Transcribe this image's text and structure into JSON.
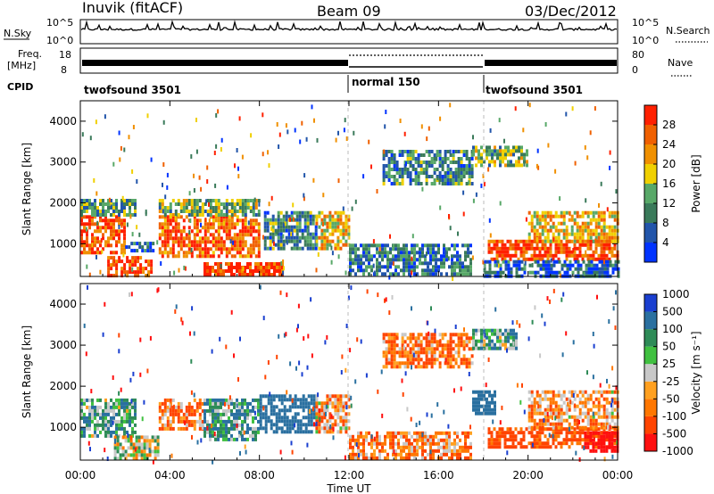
{
  "header": {
    "station": "Inuvik (fitACF)",
    "beam": "Beam 09",
    "date": "03/Dec/2012"
  },
  "top_strip": {
    "left_label": "N.Sky",
    "right_label": "N.Search",
    "left_ticks": [
      "10^5",
      "10^0"
    ],
    "right_ticks": [
      "10^5",
      "10^0"
    ]
  },
  "freq_strip": {
    "left_label": "Freq.",
    "left_unit": "[MHz]",
    "left_ticks": [
      "18",
      "8"
    ],
    "right_label": "Nave",
    "right_ticks": [
      "80",
      "0"
    ]
  },
  "cpid": {
    "label": "CPID",
    "segments": [
      {
        "name": "twofsound 3501",
        "start_hour": 0,
        "end_hour": 12
      },
      {
        "name": "normal 150",
        "start_hour": 12,
        "end_hour": 18
      },
      {
        "name": "twofsound 3501",
        "start_hour": 18,
        "end_hour": 24
      }
    ]
  },
  "x_axis": {
    "title": "Time UT",
    "ticks": [
      "00:00",
      "04:00",
      "08:00",
      "12:00",
      "16:00",
      "20:00",
      "00:00"
    ]
  },
  "colors": {
    "power": [
      "#0033ff",
      "#2255aa",
      "#3a7a5a",
      "#58a868",
      "#f0d000",
      "#f09000",
      "#f06000",
      "#ff2000"
    ],
    "velocity": [
      "#ff1010",
      "#ff4400",
      "#ff7700",
      "#ffa020",
      "#c8c8c8",
      "#40c040",
      "#2e8b57",
      "#2a70a0",
      "#1a3fd0"
    ]
  },
  "chart_data": [
    {
      "type": "heatmap",
      "name": "power",
      "ylabel": "Slant Range [km]",
      "y_ticks": [
        "1000",
        "2000",
        "3000",
        "4000"
      ],
      "ylim": [
        200,
        4500
      ],
      "colorbar_label": "Power [dB]",
      "colorbar_ticks": [
        "4",
        "8",
        "12",
        "16",
        "20",
        "24",
        "28"
      ],
      "clim": [
        0,
        32
      ],
      "bands": [
        {
          "t0": 0.0,
          "t1": 2.0,
          "r0": 800,
          "r1": 1700,
          "value": 27
        },
        {
          "t0": 0.0,
          "t1": 2.4,
          "r0": 1700,
          "r1": 2100,
          "value": 12
        },
        {
          "t0": 1.2,
          "t1": 3.2,
          "r0": 250,
          "r1": 700,
          "value": 28
        },
        {
          "t0": 2.0,
          "t1": 3.2,
          "r0": 850,
          "r1": 1050,
          "value": 6
        },
        {
          "t0": 3.5,
          "t1": 8.0,
          "r0": 700,
          "r1": 1700,
          "value": 26
        },
        {
          "t0": 3.5,
          "t1": 8.0,
          "r0": 1700,
          "r1": 2100,
          "value": 14
        },
        {
          "t0": 5.5,
          "t1": 9.0,
          "r0": 250,
          "r1": 550,
          "value": 29
        },
        {
          "t0": 8.2,
          "t1": 10.5,
          "r0": 900,
          "r1": 1800,
          "value": 10
        },
        {
          "t0": 10.5,
          "t1": 12.0,
          "r0": 900,
          "r1": 1800,
          "value": 20
        },
        {
          "t0": 12.0,
          "t1": 17.5,
          "r0": 250,
          "r1": 1000,
          "value": 9
        },
        {
          "t0": 13.5,
          "t1": 17.5,
          "r0": 2500,
          "r1": 3300,
          "value": 10
        },
        {
          "t0": 17.5,
          "t1": 20.0,
          "r0": 2900,
          "r1": 3400,
          "value": 14
        },
        {
          "t0": 18.2,
          "t1": 24.0,
          "r0": 650,
          "r1": 1100,
          "value": 28
        },
        {
          "t0": 20.0,
          "t1": 24.0,
          "r0": 1100,
          "r1": 1800,
          "value": 20
        },
        {
          "t0": 18.0,
          "t1": 24.0,
          "r0": 250,
          "r1": 600,
          "value": 6
        }
      ]
    },
    {
      "type": "heatmap",
      "name": "velocity",
      "ylabel": "Slant Range [km]",
      "y_ticks": [
        "1000",
        "2000",
        "3000",
        "4000"
      ],
      "ylim": [
        200,
        4500
      ],
      "colorbar_label": "Velocity [m s⁻¹]",
      "colorbar_ticks": [
        "1000",
        "500",
        "100",
        "50",
        "25",
        "-25",
        "-50",
        "-100",
        "-500",
        "-1000"
      ],
      "clim": [
        -1000,
        1000
      ],
      "bands": [
        {
          "t0": 0.0,
          "t1": 2.4,
          "r0": 800,
          "r1": 1700,
          "value": 60
        },
        {
          "t0": 1.5,
          "t1": 3.5,
          "r0": 250,
          "r1": 800,
          "value": 0
        },
        {
          "t0": 3.5,
          "t1": 5.5,
          "r0": 1000,
          "r1": 1700,
          "value": -100
        },
        {
          "t0": 5.5,
          "t1": 8.0,
          "r0": 700,
          "r1": 1700,
          "value": 80
        },
        {
          "t0": 8.0,
          "t1": 10.5,
          "r0": 900,
          "r1": 1800,
          "value": 200
        },
        {
          "t0": 10.5,
          "t1": 12.0,
          "r0": 900,
          "r1": 1800,
          "value": -60
        },
        {
          "t0": 12.0,
          "t1": 17.5,
          "r0": 250,
          "r1": 900,
          "value": -80
        },
        {
          "t0": 13.5,
          "t1": 17.5,
          "r0": 2500,
          "r1": 3300,
          "value": -90
        },
        {
          "t0": 17.5,
          "t1": 19.5,
          "r0": 2900,
          "r1": 3400,
          "value": 60
        },
        {
          "t0": 17.5,
          "t1": 18.5,
          "r0": 1300,
          "r1": 1900,
          "value": 300
        },
        {
          "t0": 18.2,
          "t1": 24.0,
          "r0": 500,
          "r1": 1000,
          "value": -150
        },
        {
          "t0": 20.0,
          "t1": 24.0,
          "r0": 1000,
          "r1": 1900,
          "value": -60
        },
        {
          "t0": 22.5,
          "t1": 24.0,
          "r0": 400,
          "r1": 900,
          "value": -700
        }
      ]
    }
  ]
}
